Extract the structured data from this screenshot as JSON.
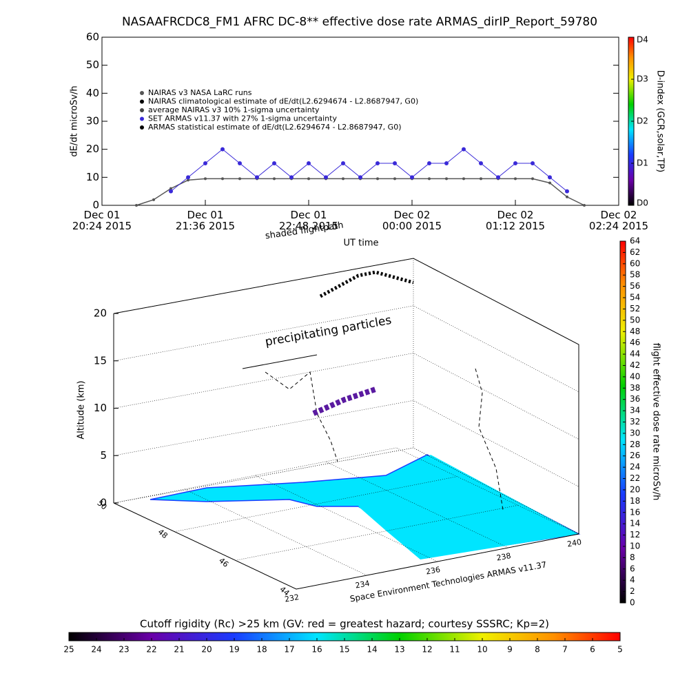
{
  "chart_data": [
    {
      "type": "line",
      "title": "NASAAFRCDC8_FM1 AFRC DC-8** effective dose rate ARMAS_dirIP_Report_59780",
      "ylabel": "dE/dt microSv/h",
      "xlabel": "UT time",
      "x": [
        "2015-12-01T20:48",
        "2015-12-01T21:00",
        "2015-12-01T21:12",
        "2015-12-01T21:24",
        "2015-12-01T21:36",
        "2015-12-01T21:48",
        "2015-12-01T22:00",
        "2015-12-01T22:12",
        "2015-12-01T22:24",
        "2015-12-01T22:36",
        "2015-12-01T22:48",
        "2015-12-01T23:00",
        "2015-12-01T23:12",
        "2015-12-01T23:24",
        "2015-12-01T23:36",
        "2015-12-01T23:48",
        "2015-12-02T00:00",
        "2015-12-02T00:12",
        "2015-12-02T00:24",
        "2015-12-02T00:36",
        "2015-12-02T00:48",
        "2015-12-02T01:00",
        "2015-12-02T01:12",
        "2015-12-02T01:24",
        "2015-12-02T01:36",
        "2015-12-02T01:48",
        "2015-12-02T02:00"
      ],
      "series": [
        {
          "name": "NAIRAS v3 NASA LaRC runs",
          "color": "#555555",
          "values": [
            0,
            2,
            6,
            9,
            9.5,
            9.5,
            9.5,
            9.5,
            9.5,
            9.5,
            9.5,
            9.5,
            9.5,
            9.5,
            9.5,
            9.5,
            9.5,
            9.5,
            9.5,
            9.5,
            9.5,
            9.5,
            9.5,
            9.5,
            8,
            3,
            0
          ]
        },
        {
          "name": "SET ARMAS v11.37 with 27% 1-sigma uncertainty",
          "color": "#3a2ad8",
          "values": [
            null,
            null,
            5,
            10,
            15,
            20,
            15,
            10,
            15,
            10,
            15,
            10,
            15,
            10,
            15,
            15,
            10,
            15,
            15,
            20,
            15,
            10,
            15,
            15,
            10,
            5,
            null
          ]
        }
      ],
      "legend_extra": [
        "NAIRAS climatological estimate of dE/dt(L2.6294674 - L2.8687947, G0)",
        "average NAIRAS v3 10% 1-sigma uncertainty",
        "ARMAS statistical estimate of dE/dt(L2.6294674 - L2.8687947, G0)"
      ],
      "xlim": [
        "2015-12-01T20:24",
        "2015-12-02T02:24"
      ],
      "xticks": [
        {
          "value": "2015-12-01T20:24",
          "label": "Dec 01\n20:24 2015"
        },
        {
          "value": "2015-12-01T21:36",
          "label": "Dec 01\n21:36 2015"
        },
        {
          "value": "2015-12-01T22:48",
          "label": "Dec 01\n22:48 2015"
        },
        {
          "value": "2015-12-02T00:00",
          "label": "Dec 02\n00:00 2015"
        },
        {
          "value": "2015-12-02T01:12",
          "label": "Dec 02\n01:12 2015"
        },
        {
          "value": "2015-12-02T02:24",
          "label": "Dec 02\n02:24 2015"
        }
      ],
      "ylim": [
        0,
        60
      ],
      "yticks": [
        0,
        10,
        20,
        30,
        40,
        50,
        60
      ],
      "colorbar": {
        "label": "D-index (GCR,solar,TP)",
        "lim": [
          0,
          4
        ],
        "ticks": [
          {
            "value": 0,
            "label": "D0"
          },
          {
            "value": 1,
            "label": "D1"
          },
          {
            "value": 2,
            "label": "D2"
          },
          {
            "value": 3,
            "label": "D3"
          },
          {
            "value": 4,
            "label": "D4"
          }
        ]
      }
    },
    {
      "type": "scatter3d",
      "zlabel": "Altitude (km)",
      "zlim": [
        0,
        20
      ],
      "zticks": [
        0,
        5,
        10,
        15,
        20
      ],
      "latlim": [
        44,
        50
      ],
      "latticks": [
        44,
        46,
        48,
        50
      ],
      "lonlim": [
        232,
        240
      ],
      "lonticks": [
        232,
        234,
        236,
        238,
        240
      ],
      "annotations": [
        "shaded flightpath",
        "precipitating particles",
        "Space Environment Technologies ARMAS v11.37"
      ],
      "colorbar": {
        "label": "flight effective dose rate microSv/h",
        "lim": [
          0,
          64
        ],
        "ticks": [
          0,
          2,
          4,
          6,
          8,
          10,
          12,
          14,
          16,
          18,
          20,
          22,
          24,
          26,
          28,
          30,
          32,
          34,
          36,
          38,
          40,
          42,
          44,
          46,
          48,
          50,
          52,
          54,
          56,
          58,
          60,
          62,
          64
        ]
      },
      "rigidity": {
        "label": "Cutoff rigidity (Rc) >25 km (GV: red = greatest hazard; courtesy SSSRC; Kp=2)",
        "lim": [
          25,
          5
        ],
        "ticks": [
          25,
          24,
          23,
          22,
          21,
          20,
          19,
          18,
          17,
          16,
          15,
          14,
          13,
          12,
          11,
          10,
          9,
          8,
          7,
          6,
          5
        ]
      }
    }
  ]
}
